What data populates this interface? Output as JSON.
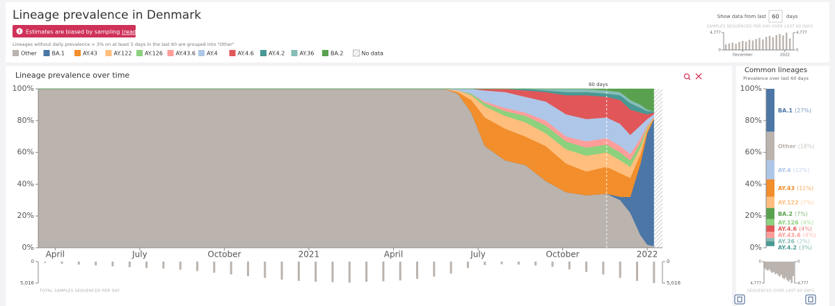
{
  "header": {
    "title": "Lineage prevalence in Denmark",
    "banner": {
      "text": "Estimates are biased by sampling ",
      "link": "(read more)"
    },
    "note": "Lineages without daily prevalence > 3% on at least 5 days in the last 60 are grouped into \"Other\"",
    "no_data_label": "No data",
    "range_control": {
      "prefix": "Show data from last",
      "value": "60",
      "suffix": "days"
    }
  },
  "chart_data": [
    {
      "type": "area",
      "title": "Lineage prevalence over time",
      "stacked": true,
      "x": [
        2020.2,
        2021.4,
        2021.44,
        2021.48,
        2021.52,
        2021.58,
        2021.64,
        2021.7,
        2021.76,
        2021.82,
        2021.88,
        2021.92,
        2021.95,
        2021.98,
        2022.0,
        2022.02
      ],
      "series": [
        {
          "name": "Other",
          "color": "#bbb3ad",
          "values": [
            100,
            100,
            97,
            85,
            64,
            55,
            52,
            42,
            35,
            33,
            34,
            30,
            22,
            8,
            2,
            1
          ]
        },
        {
          "name": "BA.1",
          "color": "#4b76a6",
          "values": [
            0,
            0,
            0,
            0,
            0,
            0,
            0,
            0,
            0,
            0,
            0,
            2,
            10,
            45,
            70,
            80
          ]
        },
        {
          "name": "AY.43",
          "color": "#f28e2b",
          "values": [
            0,
            0,
            1,
            8,
            18,
            20,
            18,
            22,
            18,
            15,
            17,
            15,
            12,
            6,
            2,
            1
          ]
        },
        {
          "name": "AY.122",
          "color": "#ffbe7d",
          "values": [
            0,
            0,
            1,
            3,
            7,
            8,
            9,
            8,
            9,
            10,
            9,
            8,
            7,
            4,
            1,
            0
          ]
        },
        {
          "name": "AY.126",
          "color": "#8cd17d",
          "values": [
            0,
            0,
            0,
            1,
            2,
            3,
            4,
            5,
            5,
            5,
            5,
            5,
            4,
            3,
            1,
            0
          ]
        },
        {
          "name": "AY.43.6",
          "color": "#ff9d9a",
          "values": [
            0,
            0,
            0,
            0,
            1,
            2,
            2,
            3,
            3,
            4,
            4,
            4,
            4,
            3,
            1,
            0
          ]
        },
        {
          "name": "AY.4",
          "color": "#aec7e8",
          "values": [
            0,
            0,
            1,
            3,
            7,
            10,
            10,
            12,
            14,
            14,
            13,
            14,
            12,
            8,
            4,
            2
          ]
        },
        {
          "name": "AY.4.6",
          "color": "#e15759",
          "values": [
            0,
            0,
            0,
            0,
            1,
            2,
            4,
            6,
            12,
            15,
            13,
            15,
            16,
            8,
            3,
            1
          ]
        },
        {
          "name": "AY.4.2",
          "color": "#499894",
          "values": [
            0,
            0,
            0,
            0,
            0,
            0,
            1,
            1,
            2,
            2,
            2,
            3,
            4,
            3,
            2,
            1
          ]
        },
        {
          "name": "AY.36",
          "color": "#86bcb6",
          "values": [
            0,
            0,
            0,
            0,
            0,
            0,
            0,
            1,
            2,
            2,
            2,
            2,
            2,
            2,
            1,
            0
          ]
        },
        {
          "name": "BA.2",
          "color": "#59a14f",
          "values": [
            0,
            0,
            0,
            0,
            0,
            0,
            0,
            0,
            0,
            0,
            1,
            2,
            7,
            10,
            13,
            14
          ]
        }
      ],
      "xlim": [
        2020.2,
        2022.045
      ],
      "xticks": [
        {
          "value": 2020.25,
          "label": "April"
        },
        {
          "value": 2020.5,
          "label": "July"
        },
        {
          "value": 2020.75,
          "label": "October"
        },
        {
          "value": 2021.0,
          "label": "2021"
        },
        {
          "value": 2021.25,
          "label": "April"
        },
        {
          "value": 2021.5,
          "label": "July"
        },
        {
          "value": 2021.75,
          "label": "October"
        },
        {
          "value": 2022.0,
          "label": "2022"
        }
      ],
      "ylim": [
        0,
        100
      ],
      "yticks": [
        {
          "value": 0,
          "label": "0%"
        },
        {
          "value": 20,
          "label": "20%"
        },
        {
          "value": 40,
          "label": "40%"
        },
        {
          "value": 60,
          "label": "60%"
        },
        {
          "value": 80,
          "label": "80%"
        },
        {
          "value": 100,
          "label": "100%"
        }
      ],
      "annotation": {
        "text": "60 days",
        "x": 2021.88
      }
    },
    {
      "type": "bar",
      "title": "TOTAL SAMPLES SEQUENCED PER DAY",
      "inverted": true,
      "color": "#bbb3ad",
      "x": [
        2020.22,
        2020.27,
        2020.32,
        2020.37,
        2020.42,
        2020.47,
        2020.52,
        2020.57,
        2020.62,
        2020.67,
        2020.72,
        2020.77,
        2020.82,
        2020.87,
        2020.92,
        2020.97,
        2021.02,
        2021.07,
        2021.12,
        2021.17,
        2021.22,
        2021.27,
        2021.32,
        2021.37,
        2021.42,
        2021.47,
        2021.52,
        2021.57,
        2021.62,
        2021.67,
        2021.72,
        2021.77,
        2021.82,
        2021.87,
        2021.92,
        2021.97,
        2022.02
      ],
      "values": [
        300,
        500,
        700,
        900,
        1100,
        1300,
        1500,
        1600,
        1900,
        2200,
        2600,
        3000,
        3400,
        3800,
        4200,
        4500,
        4700,
        4800,
        4900,
        4700,
        4600,
        4400,
        4000,
        3500,
        2800,
        1500,
        800,
        600,
        700,
        900,
        1200,
        1800,
        2400,
        3000,
        3800,
        4500,
        5016
      ],
      "ylim": [
        0,
        5016
      ],
      "yticks": [
        0,
        {
          "value": 5016,
          "label": "5,016"
        }
      ]
    },
    {
      "type": "bar",
      "title": "SAMPLES SEQUENCED PER DAY OVER LAST 60 DAYS",
      "bottom_title": "SEQUENCES OVER LAST 60 DAYS",
      "color": "#bbb3ad",
      "x": [
        2021.86,
        2021.868,
        2021.876,
        2021.884,
        2021.892,
        2021.9,
        2021.908,
        2021.916,
        2021.924,
        2021.932,
        2021.94,
        2021.948,
        2021.956,
        2021.964,
        2021.972,
        2021.98,
        2021.988,
        2021.996,
        2022.004,
        2022.012
      ],
      "values": [
        1500,
        1800,
        2000,
        1700,
        2200,
        2500,
        2300,
        2800,
        2600,
        3000,
        3300,
        2900,
        3600,
        3900,
        3500,
        4100,
        4400,
        4000,
        4777,
        3200
      ],
      "xlim": [
        2021.855,
        2022.02
      ],
      "xticks": [
        {
          "value": 2021.9,
          "label": "December"
        },
        {
          "value": 2022.0,
          "label": "2022"
        }
      ],
      "ylim": [
        0,
        4777
      ],
      "yticks": [
        0,
        {
          "value": 4777,
          "label": "4,777"
        }
      ]
    },
    {
      "type": "stacked_bar",
      "title": "Common lineages",
      "subtitle": "Prevalence over last 60 days",
      "categories": [
        "BA.1",
        "Other",
        "AY.4",
        "AY.43",
        "AY.122",
        "BA.2",
        "AY.126",
        "AY.4.6",
        "AY.43.6",
        "AY.36",
        "AY.4.2"
      ],
      "values": [
        27,
        18,
        12,
        11,
        7,
        7,
        4,
        4,
        4,
        2,
        3
      ],
      "value_labels": [
        "(27%)",
        "(18%)",
        "(12%)",
        "(11%)",
        "(7%)",
        "(7%)",
        "(4%)",
        "(4%)",
        "(4%)",
        "(2%)",
        "(3%)"
      ],
      "colors": [
        "#4b76a6",
        "#bbb3ad",
        "#aec7e8",
        "#f28e2b",
        "#ffbe7d",
        "#59a14f",
        "#8cd17d",
        "#e15759",
        "#ff9d9a",
        "#86bcb6",
        "#499894"
      ],
      "ylim": [
        0,
        100
      ],
      "yticks": [
        {
          "value": 0,
          "label": "0%"
        },
        {
          "value": 20,
          "label": "20%"
        },
        {
          "value": 40,
          "label": "40%"
        },
        {
          "value": 60,
          "label": "60%"
        },
        {
          "value": 80,
          "label": "80%"
        },
        {
          "value": 100,
          "label": "100%"
        }
      ]
    }
  ]
}
